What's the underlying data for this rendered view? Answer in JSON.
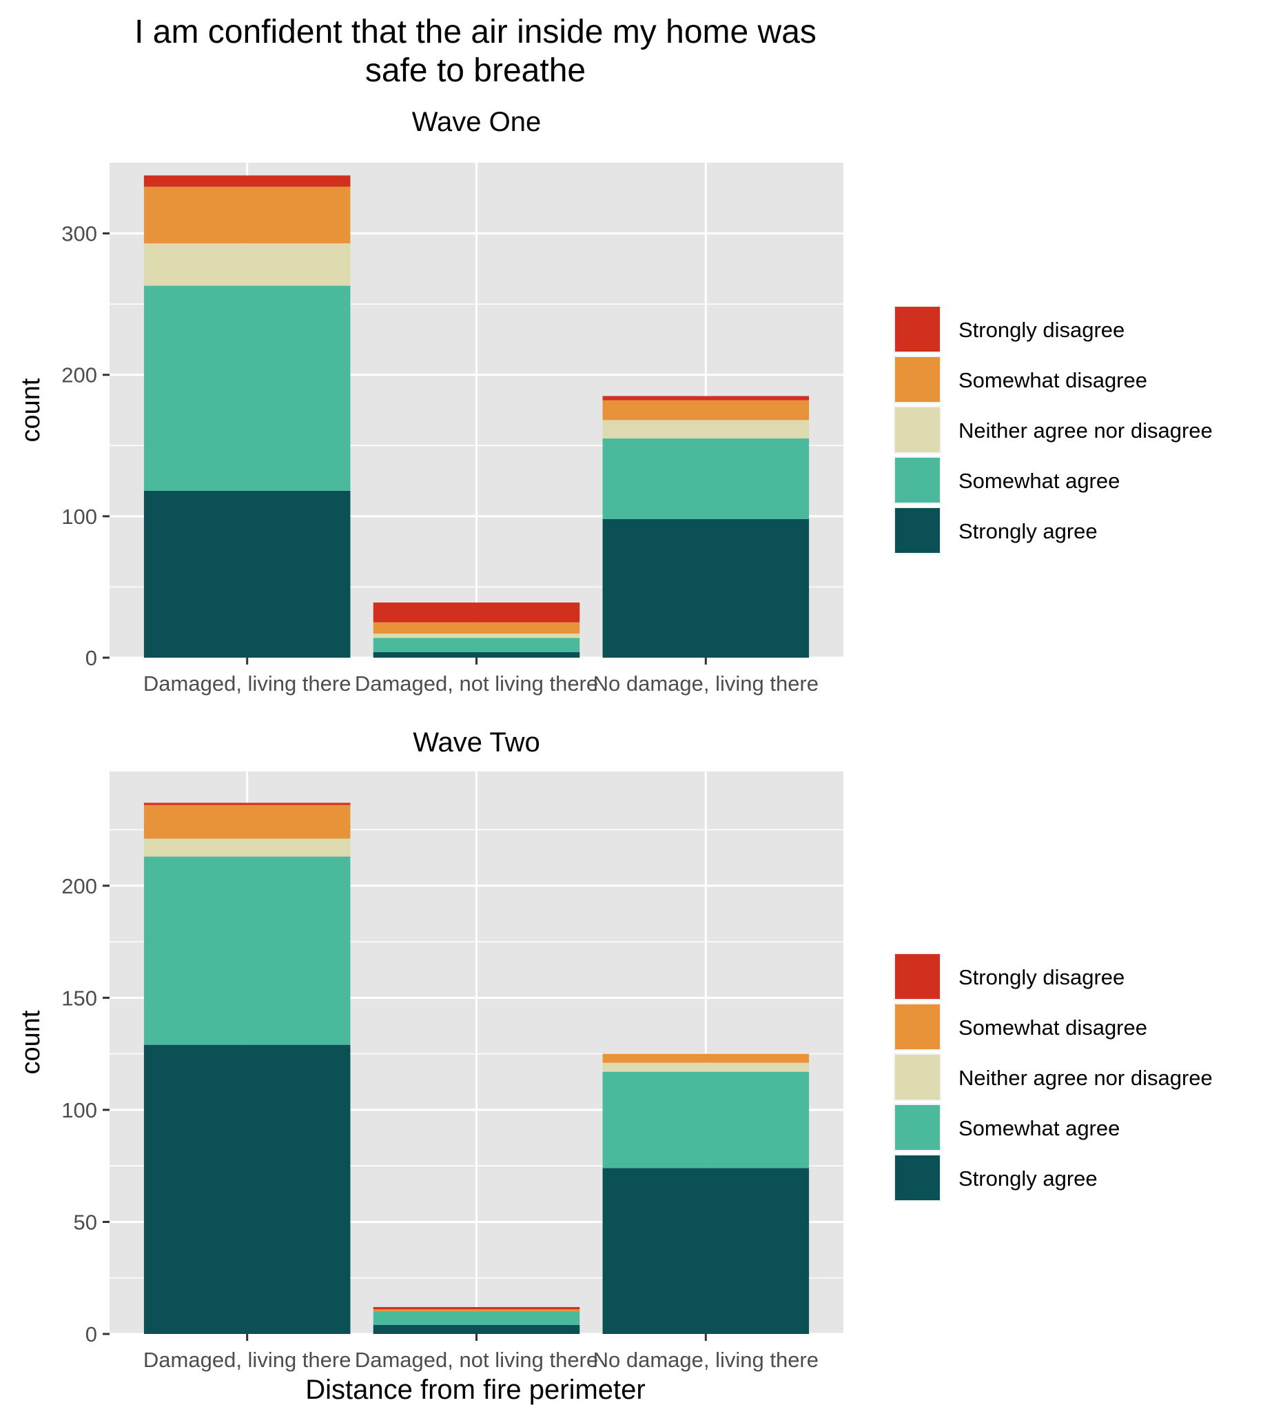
{
  "title_line1": "I am confident that the air inside my home was",
  "title_line2": "safe to breathe",
  "xlabel": "Distance from fire perimeter",
  "colors": {
    "Strongly disagree": "#d1301f",
    "Somewhat disagree": "#e8933a",
    "Neither agree nor disagree": "#dedbb0",
    "Somewhat agree": "#4bba9c",
    "Strongly agree": "#0b5054",
    "panel_bg": "#e5e5e5",
    "grid": "#ffffff"
  },
  "legend_order": [
    "Strongly disagree",
    "Somewhat disagree",
    "Neither agree nor disagree",
    "Somewhat agree",
    "Strongly agree"
  ],
  "chart_data": [
    {
      "type": "bar",
      "stacked": true,
      "title": "Wave One",
      "ylabel": "count",
      "categories": [
        "Damaged, living there",
        "Damaged, not living there",
        "No damage, living there"
      ],
      "ylim": [
        0,
        350
      ],
      "yticks": [
        0,
        100,
        200,
        300
      ],
      "series": [
        {
          "name": "Strongly agree",
          "values": [
            118,
            4,
            98
          ]
        },
        {
          "name": "Somewhat agree",
          "values": [
            145,
            10,
            57
          ]
        },
        {
          "name": "Neither agree nor disagree",
          "values": [
            30,
            3,
            13
          ]
        },
        {
          "name": "Somewhat disagree",
          "values": [
            40,
            8,
            14
          ]
        },
        {
          "name": "Strongly disagree",
          "values": [
            8,
            14,
            3
          ]
        }
      ],
      "legend_position": "right"
    },
    {
      "type": "bar",
      "stacked": true,
      "title": "Wave Two",
      "ylabel": "count",
      "categories": [
        "Damaged, living there",
        "Damaged, not living there",
        "No damage, living there"
      ],
      "ylim": [
        0,
        251
      ],
      "yticks": [
        0,
        50,
        100,
        150,
        200
      ],
      "series": [
        {
          "name": "Strongly agree",
          "values": [
            129,
            4,
            74
          ]
        },
        {
          "name": "Somewhat agree",
          "values": [
            84,
            6,
            43
          ]
        },
        {
          "name": "Neither agree nor disagree",
          "values": [
            8,
            0,
            4
          ]
        },
        {
          "name": "Somewhat disagree",
          "values": [
            15,
            1,
            4
          ]
        },
        {
          "name": "Strongly disagree",
          "values": [
            1,
            1,
            0
          ]
        }
      ],
      "legend_position": "right"
    }
  ]
}
